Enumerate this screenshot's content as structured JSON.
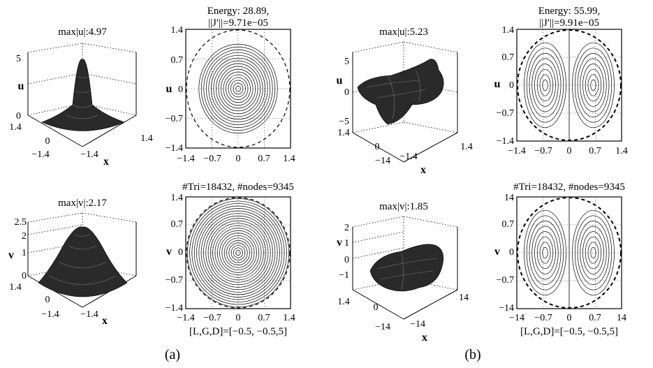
{
  "panels": {
    "a": {
      "caption": "(a)",
      "u_surface": {
        "title": "max|u|:4.97",
        "zlabel": "u",
        "xlabel": "x",
        "zticks": [
          "5",
          "0"
        ],
        "left_ticks": [
          "1.4",
          "0",
          "−1.4"
        ],
        "right_ticks": [
          "1.4",
          "−1.4"
        ]
      },
      "u_contour": {
        "title_line1": "Energy: 28.89,",
        "title_line2": "||J′||=9.71e−05",
        "ylabel": "u",
        "yticks": [
          "1.4",
          "0.7",
          "0",
          "−0.7",
          "−1.4"
        ],
        "xticks": [
          "−1.4",
          "−0.7",
          "0",
          "0.7",
          "1.4"
        ],
        "contour_kind": "radial"
      },
      "v_surface": {
        "title": "max|v|:2.17",
        "zlabel": "v",
        "xlabel": "x",
        "zticks": [
          "2.5",
          "2",
          "1",
          "0"
        ],
        "left_ticks": [
          "1.4",
          "0",
          "−1.4"
        ],
        "right_ticks": [
          "−1.4"
        ]
      },
      "v_contour": {
        "title": "#Tri=18432, #nodes=9345",
        "ylabel": "v",
        "yticks": [
          "1.4",
          "0.7",
          "0",
          "−0.7",
          "−1.4"
        ],
        "xticks": [
          "−1.4",
          "−0.7",
          "0",
          "0.7",
          "1.4"
        ],
        "bottom_label": "[L,G,D]=[−0.5, −0.5,5]",
        "contour_kind": "radial-dense"
      }
    },
    "b": {
      "caption": "(b)",
      "u_surface": {
        "title": "max|u|:5.23",
        "zlabel": "u",
        "xlabel": "x",
        "zticks": [
          "5",
          "0",
          "−5"
        ],
        "left_ticks": [
          "1.4",
          "0",
          "−14"
        ],
        "right_ticks": [
          "1.4",
          "−1.4"
        ]
      },
      "u_contour": {
        "title_line1": "Energy: 55.99,",
        "title_line2": "||J′||=9.91e−05",
        "ylabel": "u",
        "yticks": [
          "1.4",
          "0.7",
          "0",
          "−0.7",
          "−1.4"
        ],
        "xticks": [
          "−1.4",
          "−0.7",
          "0",
          "0.7",
          "1.4"
        ],
        "contour_kind": "dipole"
      },
      "v_surface": {
        "title": "max|v|:1.85",
        "zlabel": "v",
        "xlabel": "x",
        "zticks": [
          "2",
          "1",
          "0",
          "−1"
        ],
        "left_ticks": [
          "1.4",
          "0",
          "−14"
        ],
        "right_ticks": [
          "14",
          "−14"
        ]
      },
      "v_contour": {
        "title": "#Tri=18432, #nodes=9345",
        "ylabel": "v",
        "yticks": [
          "14",
          "0.7",
          "0",
          "−0.7",
          "−14"
        ],
        "xticks": [
          "−14",
          "−0.7",
          "0",
          "0.7",
          "14"
        ],
        "bottom_label": "[L,G,D]=[−0.5, −0.5,5]",
        "contour_kind": "dipole"
      }
    }
  }
}
